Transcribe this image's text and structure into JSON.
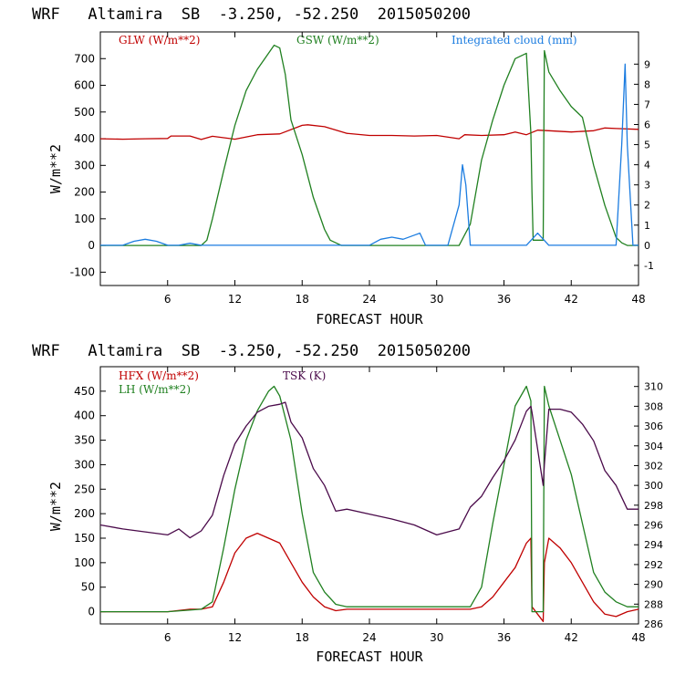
{
  "chart_data": [
    {
      "type": "line",
      "title": "WRF   Altamira  SB  -3.250, -52.250  2015050200",
      "xlabel": "FORECAST HOUR",
      "ylabel": "W/m**2",
      "xlim": [
        0,
        48
      ],
      "ylim": [
        -150,
        800
      ],
      "xticks": [
        6,
        12,
        18,
        24,
        30,
        36,
        42,
        48
      ],
      "yticks": [
        -100,
        0,
        100,
        200,
        300,
        400,
        500,
        600,
        700
      ],
      "y2lim": [
        -2.0,
        10.6
      ],
      "y2ticks": [
        -1,
        0,
        1,
        2,
        3,
        4,
        5,
        6,
        7,
        8,
        9
      ],
      "grid": false,
      "legend": "top",
      "series": [
        {
          "name": "GLW (W/m**2)",
          "color": "#c00000",
          "axis": "left",
          "x": [
            0,
            2,
            4,
            6,
            6.3,
            8,
            9,
            10,
            12,
            14,
            16,
            18,
            18.5,
            20,
            22,
            24,
            26,
            28,
            30,
            32,
            32.5,
            34,
            36,
            37,
            38,
            39,
            40,
            42,
            44,
            45,
            46,
            48
          ],
          "y": [
            400,
            398,
            400,
            401,
            410,
            410,
            397,
            409,
            398,
            415,
            418,
            450,
            452,
            445,
            420,
            412,
            412,
            410,
            412,
            400,
            415,
            412,
            415,
            425,
            415,
            432,
            430,
            425,
            430,
            440,
            438,
            435
          ]
        },
        {
          "name": "GSW (W/m**2)",
          "color": "#208020",
          "axis": "left",
          "x": [
            0,
            9,
            9.5,
            10,
            11,
            12,
            13,
            14,
            15,
            15.5,
            16,
            16.5,
            17,
            18,
            19,
            20,
            20.5,
            21,
            21.5,
            22,
            32,
            33,
            34,
            35,
            36,
            37,
            38,
            38.4,
            38.5,
            38.6,
            39.5,
            39.6,
            40,
            41,
            42,
            43,
            44,
            45,
            46,
            46.5,
            47,
            48
          ],
          "y": [
            0,
            0,
            20,
            100,
            280,
            450,
            580,
            660,
            720,
            750,
            740,
            640,
            470,
            340,
            180,
            60,
            20,
            10,
            0,
            0,
            0,
            80,
            320,
            470,
            600,
            700,
            720,
            420,
            200,
            20,
            20,
            730,
            650,
            580,
            520,
            480,
            300,
            150,
            30,
            10,
            0,
            0
          ]
        },
        {
          "name": "Integrated cloud (mm)",
          "color": "#1b7ce0",
          "axis": "right",
          "x": [
            0,
            2,
            3,
            4,
            5,
            6,
            7,
            8,
            9,
            24,
            25,
            26,
            27,
            28,
            28.5,
            29,
            31,
            32,
            32.3,
            32.6,
            33,
            34,
            38,
            39,
            40,
            45,
            46,
            46.5,
            46.8,
            47,
            47.5,
            48
          ],
          "y": [
            0,
            0,
            0.2,
            0.3,
            0.2,
            0,
            0,
            0.1,
            0,
            0,
            0.3,
            0.4,
            0.3,
            0.5,
            0.6,
            0,
            0,
            2.0,
            4.0,
            3.0,
            0,
            0,
            0,
            0.6,
            0,
            0,
            0,
            5,
            9,
            5,
            0,
            0
          ]
        }
      ]
    },
    {
      "type": "line",
      "title": "WRF   Altamira  SB  -3.250, -52.250  2015050200",
      "xlabel": "FORECAST HOUR",
      "ylabel": "W/m**2",
      "xlim": [
        0,
        48
      ],
      "ylim": [
        -25,
        500
      ],
      "xticks": [
        6,
        12,
        18,
        24,
        30,
        36,
        42,
        48
      ],
      "yticks": [
        0,
        50,
        100,
        150,
        200,
        250,
        300,
        350,
        400,
        450
      ],
      "y2lim": [
        286,
        312
      ],
      "y2ticks": [
        286,
        288,
        290,
        292,
        294,
        296,
        298,
        300,
        302,
        304,
        306,
        308,
        310
      ],
      "grid": false,
      "legend": "top",
      "series": [
        {
          "name": "HFX (W/m**2)",
          "color": "#c00000",
          "axis": "left",
          "x": [
            0,
            6,
            8,
            9,
            10,
            11,
            12,
            13,
            14,
            15,
            16,
            17,
            18,
            19,
            20,
            21,
            22,
            25,
            30,
            33,
            34,
            35,
            36,
            37,
            38,
            38.4,
            38.5,
            39.5,
            39.6,
            40,
            41,
            42,
            43,
            44,
            45,
            46,
            47,
            48
          ],
          "y": [
            0,
            0,
            5,
            5,
            10,
            60,
            120,
            150,
            160,
            150,
            140,
            100,
            60,
            30,
            10,
            2,
            5,
            5,
            5,
            5,
            10,
            30,
            60,
            90,
            140,
            150,
            10,
            -20,
            100,
            150,
            130,
            100,
            60,
            20,
            -5,
            -10,
            0,
            5
          ]
        },
        {
          "name": "LH (W/m**2)",
          "color": "#208020",
          "axis": "left",
          "x": [
            0,
            6,
            9,
            10,
            11,
            12,
            13,
            14,
            15,
            15.5,
            16,
            17,
            18,
            19,
            20,
            21,
            22,
            33,
            34,
            35,
            36,
            37,
            38,
            38.4,
            38.5,
            39.5,
            39.6,
            40,
            41,
            42,
            43,
            44,
            45,
            46,
            47,
            48
          ],
          "y": [
            0,
            0,
            5,
            20,
            130,
            250,
            350,
            410,
            450,
            460,
            440,
            350,
            200,
            80,
            40,
            15,
            10,
            10,
            50,
            180,
            300,
            420,
            460,
            430,
            0,
            0,
            460,
            420,
            350,
            280,
            180,
            80,
            40,
            20,
            10,
            10
          ]
        },
        {
          "name": "TSK (K)",
          "color": "#4a0a4a",
          "axis": "right",
          "x": [
            0,
            2,
            4,
            6,
            7,
            8,
            9,
            10,
            11,
            12,
            13,
            14,
            15,
            16,
            16.5,
            17,
            18,
            19,
            20,
            21,
            22,
            24,
            26,
            28,
            30,
            32,
            33,
            34,
            35,
            36,
            37,
            38,
            38.4,
            38.5,
            39.5,
            39.6,
            40,
            41,
            42,
            43,
            44,
            45,
            46,
            47,
            48
          ],
          "y": [
            296,
            295.6,
            295.3,
            295,
            295.6,
            294.7,
            295.4,
            297,
            301,
            304.2,
            306,
            307.4,
            308,
            308.2,
            308.4,
            306.4,
            304.8,
            301.7,
            300,
            297.4,
            297.6,
            297.1,
            296.6,
            296,
            295,
            295.6,
            297.8,
            298.9,
            300.8,
            302.5,
            304.6,
            307.5,
            308,
            307.4,
            300,
            302.1,
            307.7,
            307.7,
            307.4,
            306.2,
            304.5,
            301.5,
            300,
            297.6,
            297.6
          ]
        }
      ]
    }
  ]
}
